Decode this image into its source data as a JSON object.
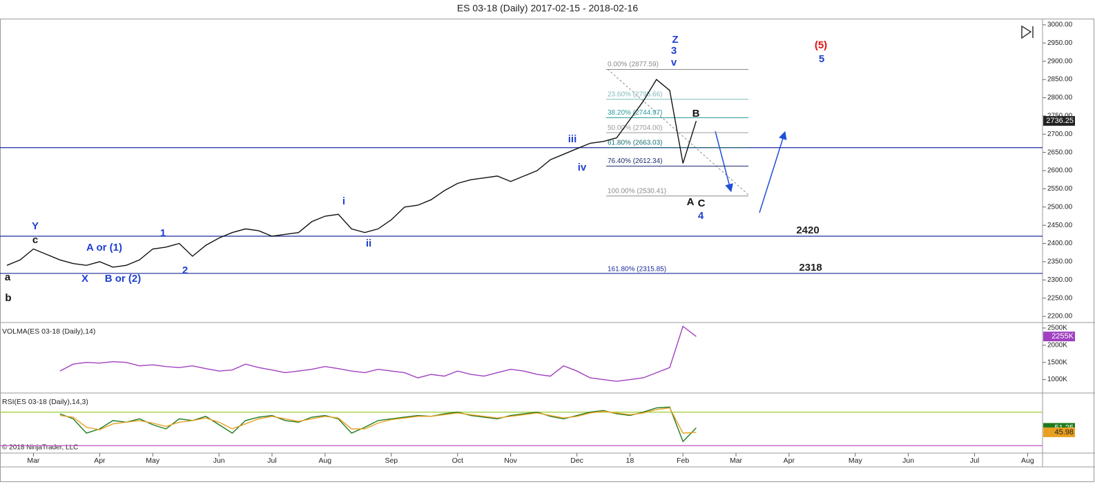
{
  "chart_data": [
    {
      "type": "line",
      "title": "ES 03-18 (Daily)  2017-02-15 - 2018-02-16",
      "categories": [
        null,
        null,
        "Mar",
        null,
        null,
        null,
        null,
        "Apr",
        null,
        null,
        null,
        "May",
        null,
        null,
        null,
        null,
        "Jun",
        null,
        null,
        null,
        "Jul",
        null,
        null,
        null,
        "Aug",
        null,
        null,
        null,
        null,
        "Sep",
        null,
        null,
        null,
        null,
        "Oct",
        null,
        null,
        null,
        "Nov",
        null,
        null,
        null,
        null,
        "Dec",
        null,
        null,
        null,
        "18",
        null,
        null,
        null,
        "Feb",
        null,
        null,
        null,
        "Mar",
        null,
        null,
        null,
        "Apr",
        null,
        null,
        null,
        null,
        "May",
        null,
        null,
        null,
        "Jun",
        null,
        null,
        null,
        null,
        "Jul",
        null,
        null,
        null,
        "Aug",
        null
      ],
      "series": [
        {
          "color": "#111111",
          "values": [
            2340,
            2355,
            2385,
            2370,
            2355,
            2345,
            2340,
            2350,
            2335,
            2340,
            2355,
            2385,
            2390,
            2400,
            2365,
            2395,
            2415,
            2430,
            2440,
            2435,
            2420,
            2425,
            2430,
            2460,
            2475,
            2480,
            2440,
            2430,
            2440,
            2465,
            2500,
            2505,
            2520,
            2545,
            2565,
            2575,
            2580,
            2585,
            2570,
            2585,
            2600,
            2630,
            2645,
            2660,
            2675,
            2680,
            2690,
            2740,
            2790,
            2850,
            2820,
            2620,
            2736.25,
            null,
            null,
            null,
            null,
            null,
            null,
            null,
            null,
            null,
            null,
            null,
            null,
            null,
            null,
            null,
            null,
            null,
            null,
            null,
            null,
            null,
            null,
            null,
            null,
            null,
            null
          ]
        }
      ],
      "ylim": [
        2185,
        3015
      ],
      "yticks": [
        {
          "value": 2200,
          "label": "2200.00"
        },
        {
          "value": 2250,
          "label": "2250.00"
        },
        {
          "value": 2300,
          "label": "2300.00"
        },
        {
          "value": 2350,
          "label": "2350.00"
        },
        {
          "value": 2400,
          "label": "2400.00"
        },
        {
          "value": 2450,
          "label": "2450.00"
        },
        {
          "value": 2500,
          "label": "2500.00"
        },
        {
          "value": 2550,
          "label": "2550.00"
        },
        {
          "value": 2600,
          "label": "2600.00"
        },
        {
          "value": 2650,
          "label": "2650.00"
        },
        {
          "value": 2700,
          "label": "2700.00"
        },
        {
          "value": 2750,
          "label": "2750.00"
        },
        {
          "value": 2800,
          "label": "2800.00"
        },
        {
          "value": 2850,
          "label": "2850.00"
        },
        {
          "value": 2900,
          "label": "2900.00"
        },
        {
          "value": 2950,
          "label": "2950.00"
        },
        {
          "value": 3000,
          "label": "3000.00"
        }
      ],
      "levels": [
        2663,
        2420,
        2318
      ],
      "level_color": "#1a2a9c",
      "fib": [
        {
          "label": "0.00% (2877.59)",
          "value": 2877.59,
          "color": "#8a8a8a"
        },
        {
          "label": "23.60% (2795.66)",
          "value": 2795.66,
          "color": "#7fb8b8"
        },
        {
          "label": "38.20% (2744.97)",
          "value": 2744.97,
          "color": "#2a9a9a"
        },
        {
          "label": "50.00% (2704.00)",
          "value": 2704.0,
          "color": "#9a9a9a"
        },
        {
          "label": "61.80% (2663.03)",
          "value": 2663.03,
          "color": "#1f6f6f"
        },
        {
          "label": "76.40% (2612.34)",
          "value": 2612.34,
          "color": "#1a2a6c"
        },
        {
          "label": "100.00% (2530.41)",
          "value": 2530.41,
          "color": "#8a8a8a"
        },
        {
          "label": "161.80% (2315.85)",
          "value": 2315.85,
          "color": "#1a2a9c"
        }
      ],
      "annotations": [
        {
          "text": "Z",
          "color": "#1f3fcf"
        },
        {
          "text": "3",
          "color": "#1f3fcf"
        },
        {
          "text": "v",
          "color": "#1f3fcf"
        },
        {
          "text": "(5)",
          "color": "#e01010"
        },
        {
          "text": "5",
          "color": "#1f3fcf"
        },
        {
          "text": "B",
          "color": "#111111"
        },
        {
          "text": "iii",
          "color": "#1f3fcf"
        },
        {
          "text": "iv",
          "color": "#1f3fcf"
        },
        {
          "text": "A",
          "color": "#111111"
        },
        {
          "text": "C",
          "color": "#111111"
        },
        {
          "text": "4",
          "color": "#1f3fcf"
        },
        {
          "text": "i",
          "color": "#1f3fcf"
        },
        {
          "text": "ii",
          "color": "#1f3fcf"
        },
        {
          "text": "1",
          "color": "#1f3fcf"
        },
        {
          "text": "2",
          "color": "#1f3fcf"
        },
        {
          "text": "Y",
          "color": "#1f3fcf"
        },
        {
          "text": "c",
          "color": "#111111"
        },
        {
          "text": "a",
          "color": "#111111"
        },
        {
          "text": "b",
          "color": "#111111"
        },
        {
          "text": "A or (1)",
          "color": "#1f3fcf"
        },
        {
          "text": "X",
          "color": "#1f3fcf"
        },
        {
          "text": "B or (2)",
          "color": "#1f3fcf"
        }
      ]
    },
    {
      "type": "line",
      "title": "VOLMA(ES 03-18 (Daily),14)",
      "series": [
        {
          "color": "#a040c0",
          "values": [
            null,
            null,
            null,
            null,
            1250000,
            1450000,
            1500000,
            1480000,
            1520000,
            1500000,
            1400000,
            1430000,
            1380000,
            1350000,
            1400000,
            1320000,
            1250000,
            1280000,
            1450000,
            1350000,
            1280000,
            1200000,
            1250000,
            1300000,
            1380000,
            1320000,
            1250000,
            1200000,
            1300000,
            1250000,
            1200000,
            1050000,
            1150000,
            1100000,
            1250000,
            1150000,
            1100000,
            1200000,
            1300000,
            1250000,
            1150000,
            1100000,
            1400000,
            1250000,
            1050000,
            1000000,
            950000,
            1000000,
            1050000,
            1200000,
            1350000,
            2550000,
            2255000,
            null,
            null,
            null,
            null,
            null,
            null,
            null,
            null,
            null,
            null,
            null,
            null,
            null,
            null,
            null,
            null,
            null,
            null,
            null,
            null,
            null,
            null,
            null,
            null,
            null,
            null
          ],
          "value_labels": [
            null,
            null,
            null,
            null,
            null,
            null,
            null,
            null,
            null,
            null,
            null,
            null,
            null,
            null,
            null,
            null,
            null,
            null,
            null,
            null,
            null,
            null,
            null,
            null,
            null,
            null,
            null,
            null,
            null,
            null,
            null,
            null,
            null,
            null,
            null,
            null,
            null,
            null,
            null,
            null,
            null,
            null,
            null,
            null,
            null,
            null,
            null,
            null,
            null,
            null,
            null,
            null,
            "2255K",
            null,
            null,
            null,
            null,
            null,
            null,
            null,
            null,
            null,
            null,
            null,
            null,
            null,
            null,
            null,
            null,
            null,
            null,
            null,
            null,
            null,
            null,
            null,
            null,
            null,
            null
          ]
        }
      ],
      "ylim": [
        630000,
        2640000
      ],
      "yticks": [
        {
          "value": 1000000,
          "label": "1000K"
        },
        {
          "value": 1500000,
          "label": "1500K"
        },
        {
          "value": 2000000,
          "label": "2000K"
        },
        {
          "value": 2500000,
          "label": "2500K"
        }
      ]
    },
    {
      "type": "line",
      "title": "RSI(ES 03-18 (Daily),14,3)",
      "series": [
        {
          "color": "#1e7a1e",
          "values": [
            null,
            null,
            null,
            null,
            68,
            62,
            45,
            50,
            60,
            58,
            62,
            55,
            50,
            62,
            60,
            65,
            55,
            45,
            60,
            64,
            66,
            60,
            58,
            64,
            66,
            62,
            45,
            52,
            60,
            62,
            64,
            66,
            65,
            68,
            70,
            66,
            64,
            62,
            66,
            68,
            70,
            65,
            62,
            66,
            70,
            72,
            68,
            66,
            70,
            75,
            76,
            35,
            51.25,
            null,
            null,
            null,
            null,
            null,
            null,
            null,
            null,
            null,
            null,
            null,
            null,
            null,
            null,
            null,
            null,
            null,
            null,
            null,
            null,
            null,
            null,
            null,
            null,
            null,
            null
          ]
        },
        {
          "color": "#e8a020",
          "values": [
            null,
            null,
            null,
            null,
            66,
            64,
            52,
            49,
            56,
            58,
            60,
            57,
            53,
            58,
            60,
            63,
            58,
            50,
            56,
            62,
            65,
            62,
            59,
            62,
            65,
            63,
            50,
            50,
            57,
            61,
            63,
            65,
            65,
            67,
            69,
            67,
            65,
            63,
            65,
            67,
            69,
            66,
            63,
            65,
            69,
            71,
            69,
            67,
            69,
            73,
            75,
            45,
            45.98,
            null,
            null,
            null,
            null,
            null,
            null,
            null,
            null,
            null,
            null,
            null,
            null,
            null,
            null,
            null,
            null,
            null,
            null,
            null,
            null,
            null,
            null,
            null,
            null,
            null,
            null
          ]
        }
      ],
      "ylim": [
        22,
        92
      ],
      "levels": [
        70,
        30
      ],
      "level_colors": [
        "#9acd32",
        "#c050c0"
      ]
    }
  ],
  "footer": "© 2018 NinjaTrader, LLC"
}
